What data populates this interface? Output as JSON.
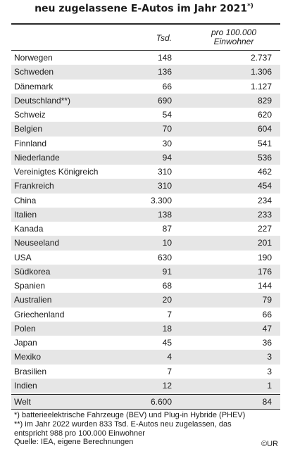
{
  "title": "neu zugelassene E-Autos im Jahr 2021",
  "title_mark": "*)",
  "header": {
    "col_tsd": "Tsd.",
    "col_pro_line1": "pro 100.000",
    "col_pro_line2": "Einwohner"
  },
  "chart_data": {
    "type": "table",
    "columns": [
      "",
      "Tsd.",
      "pro 100.000 Einwohner"
    ],
    "rows": [
      {
        "country": "Norwegen",
        "tsd": "148",
        "pro": "2.737"
      },
      {
        "country": "Schweden",
        "tsd": "136",
        "pro": "1.306"
      },
      {
        "country": "Dänemark",
        "tsd": "66",
        "pro": "1.127"
      },
      {
        "country": "Deutschland**)",
        "tsd": "690",
        "pro": "829"
      },
      {
        "country": "Schweiz",
        "tsd": "54",
        "pro": "620"
      },
      {
        "country": "Belgien",
        "tsd": "70",
        "pro": "604"
      },
      {
        "country": "Finnland",
        "tsd": "30",
        "pro": "541"
      },
      {
        "country": "Niederlande",
        "tsd": "94",
        "pro": "536"
      },
      {
        "country": "Vereinigtes Königreich",
        "tsd": "310",
        "pro": "462"
      },
      {
        "country": "Frankreich",
        "tsd": "310",
        "pro": "454"
      },
      {
        "country": "China",
        "tsd": "3.300",
        "pro": "234"
      },
      {
        "country": "Italien",
        "tsd": "138",
        "pro": "233"
      },
      {
        "country": "Kanada",
        "tsd": "87",
        "pro": "227"
      },
      {
        "country": "Neuseeland",
        "tsd": "10",
        "pro": "201"
      },
      {
        "country": "USA",
        "tsd": "630",
        "pro": "190"
      },
      {
        "country": "Südkorea",
        "tsd": "91",
        "pro": "176"
      },
      {
        "country": "Spanien",
        "tsd": "68",
        "pro": "144"
      },
      {
        "country": "Australien",
        "tsd": "20",
        "pro": "79"
      },
      {
        "country": "Griechenland",
        "tsd": "7",
        "pro": "66"
      },
      {
        "country": "Polen",
        "tsd": "18",
        "pro": "47"
      },
      {
        "country": "Japan",
        "tsd": "45",
        "pro": "36"
      },
      {
        "country": "Mexiko",
        "tsd": "4",
        "pro": "3"
      },
      {
        "country": "Brasilien",
        "tsd": "7",
        "pro": "3"
      },
      {
        "country": "Indien",
        "tsd": "12",
        "pro": "1"
      }
    ],
    "total": {
      "country": "Welt",
      "tsd": "6.600",
      "pro": "84"
    }
  },
  "notes": [
    "*) batterieelektrische Fahrzeuge (BEV) und Plug-in Hybride (PHEV)",
    "**) im Jahr 2022 wurden 833 Tsd. E-Autos neu zugelassen, das",
    "entspricht 988 pro 100.000 Einwohner",
    "Quelle: IEA, eigene Berechnungen"
  ],
  "credit": "©UR",
  "colors": {
    "stripe": "#e6e6e6",
    "rule": "#2a2a2a"
  }
}
